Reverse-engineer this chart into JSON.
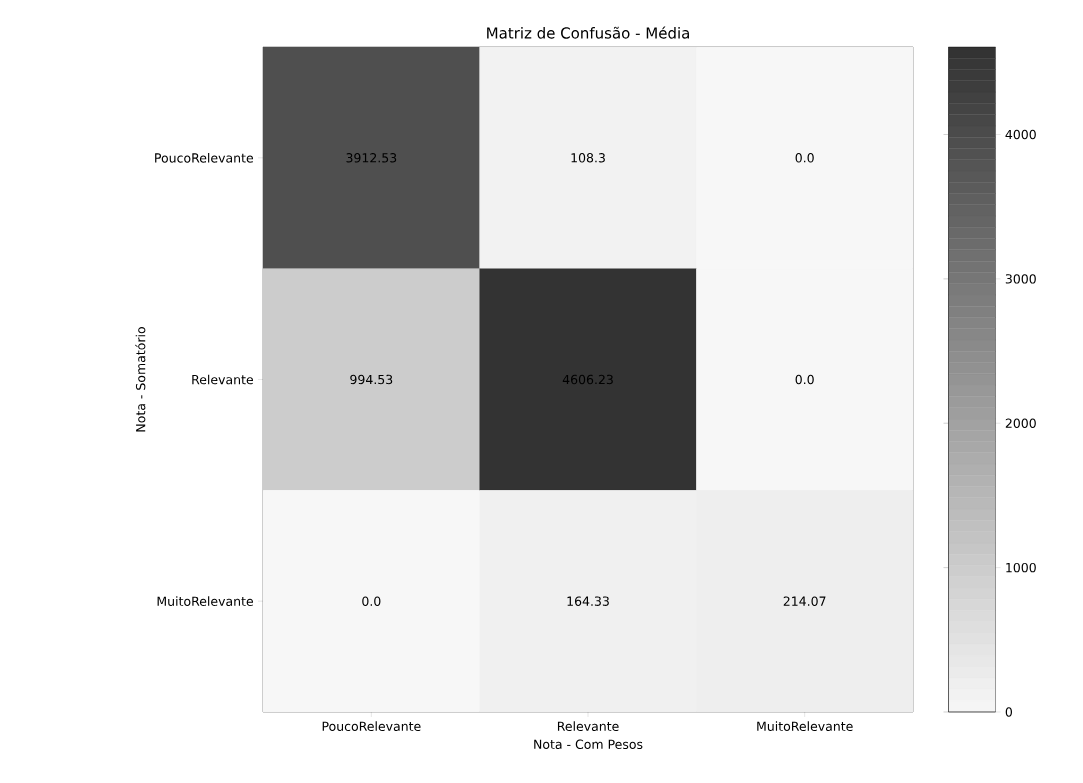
{
  "chart_data": {
    "type": "heatmap",
    "title": "Matriz de Confusão - Média",
    "xlabel": "Nota - Com Pesos",
    "ylabel": "Nota - Somatório",
    "categories": [
      "PoucoRelevante",
      "Relevante",
      "MuitoRelevante"
    ],
    "y_categories": [
      "PoucoRelevante",
      "Relevante",
      "MuitoRelevante"
    ],
    "cells": [
      [
        3912.53,
        108.3,
        0.0
      ],
      [
        994.53,
        4606.23,
        0.0
      ],
      [
        0.0,
        164.33,
        214.07
      ]
    ],
    "cell_labels": [
      [
        "3912.53",
        "108.3",
        "0.0"
      ],
      [
        "994.53",
        "4606.23",
        "0.0"
      ],
      [
        "0.0",
        "164.33",
        "214.07"
      ]
    ],
    "clim": [
      0,
      4606.23
    ],
    "cticks": [
      0,
      1000,
      2000,
      3000,
      4000
    ],
    "colors": [
      "#f7f7f7",
      "#333333"
    ]
  }
}
